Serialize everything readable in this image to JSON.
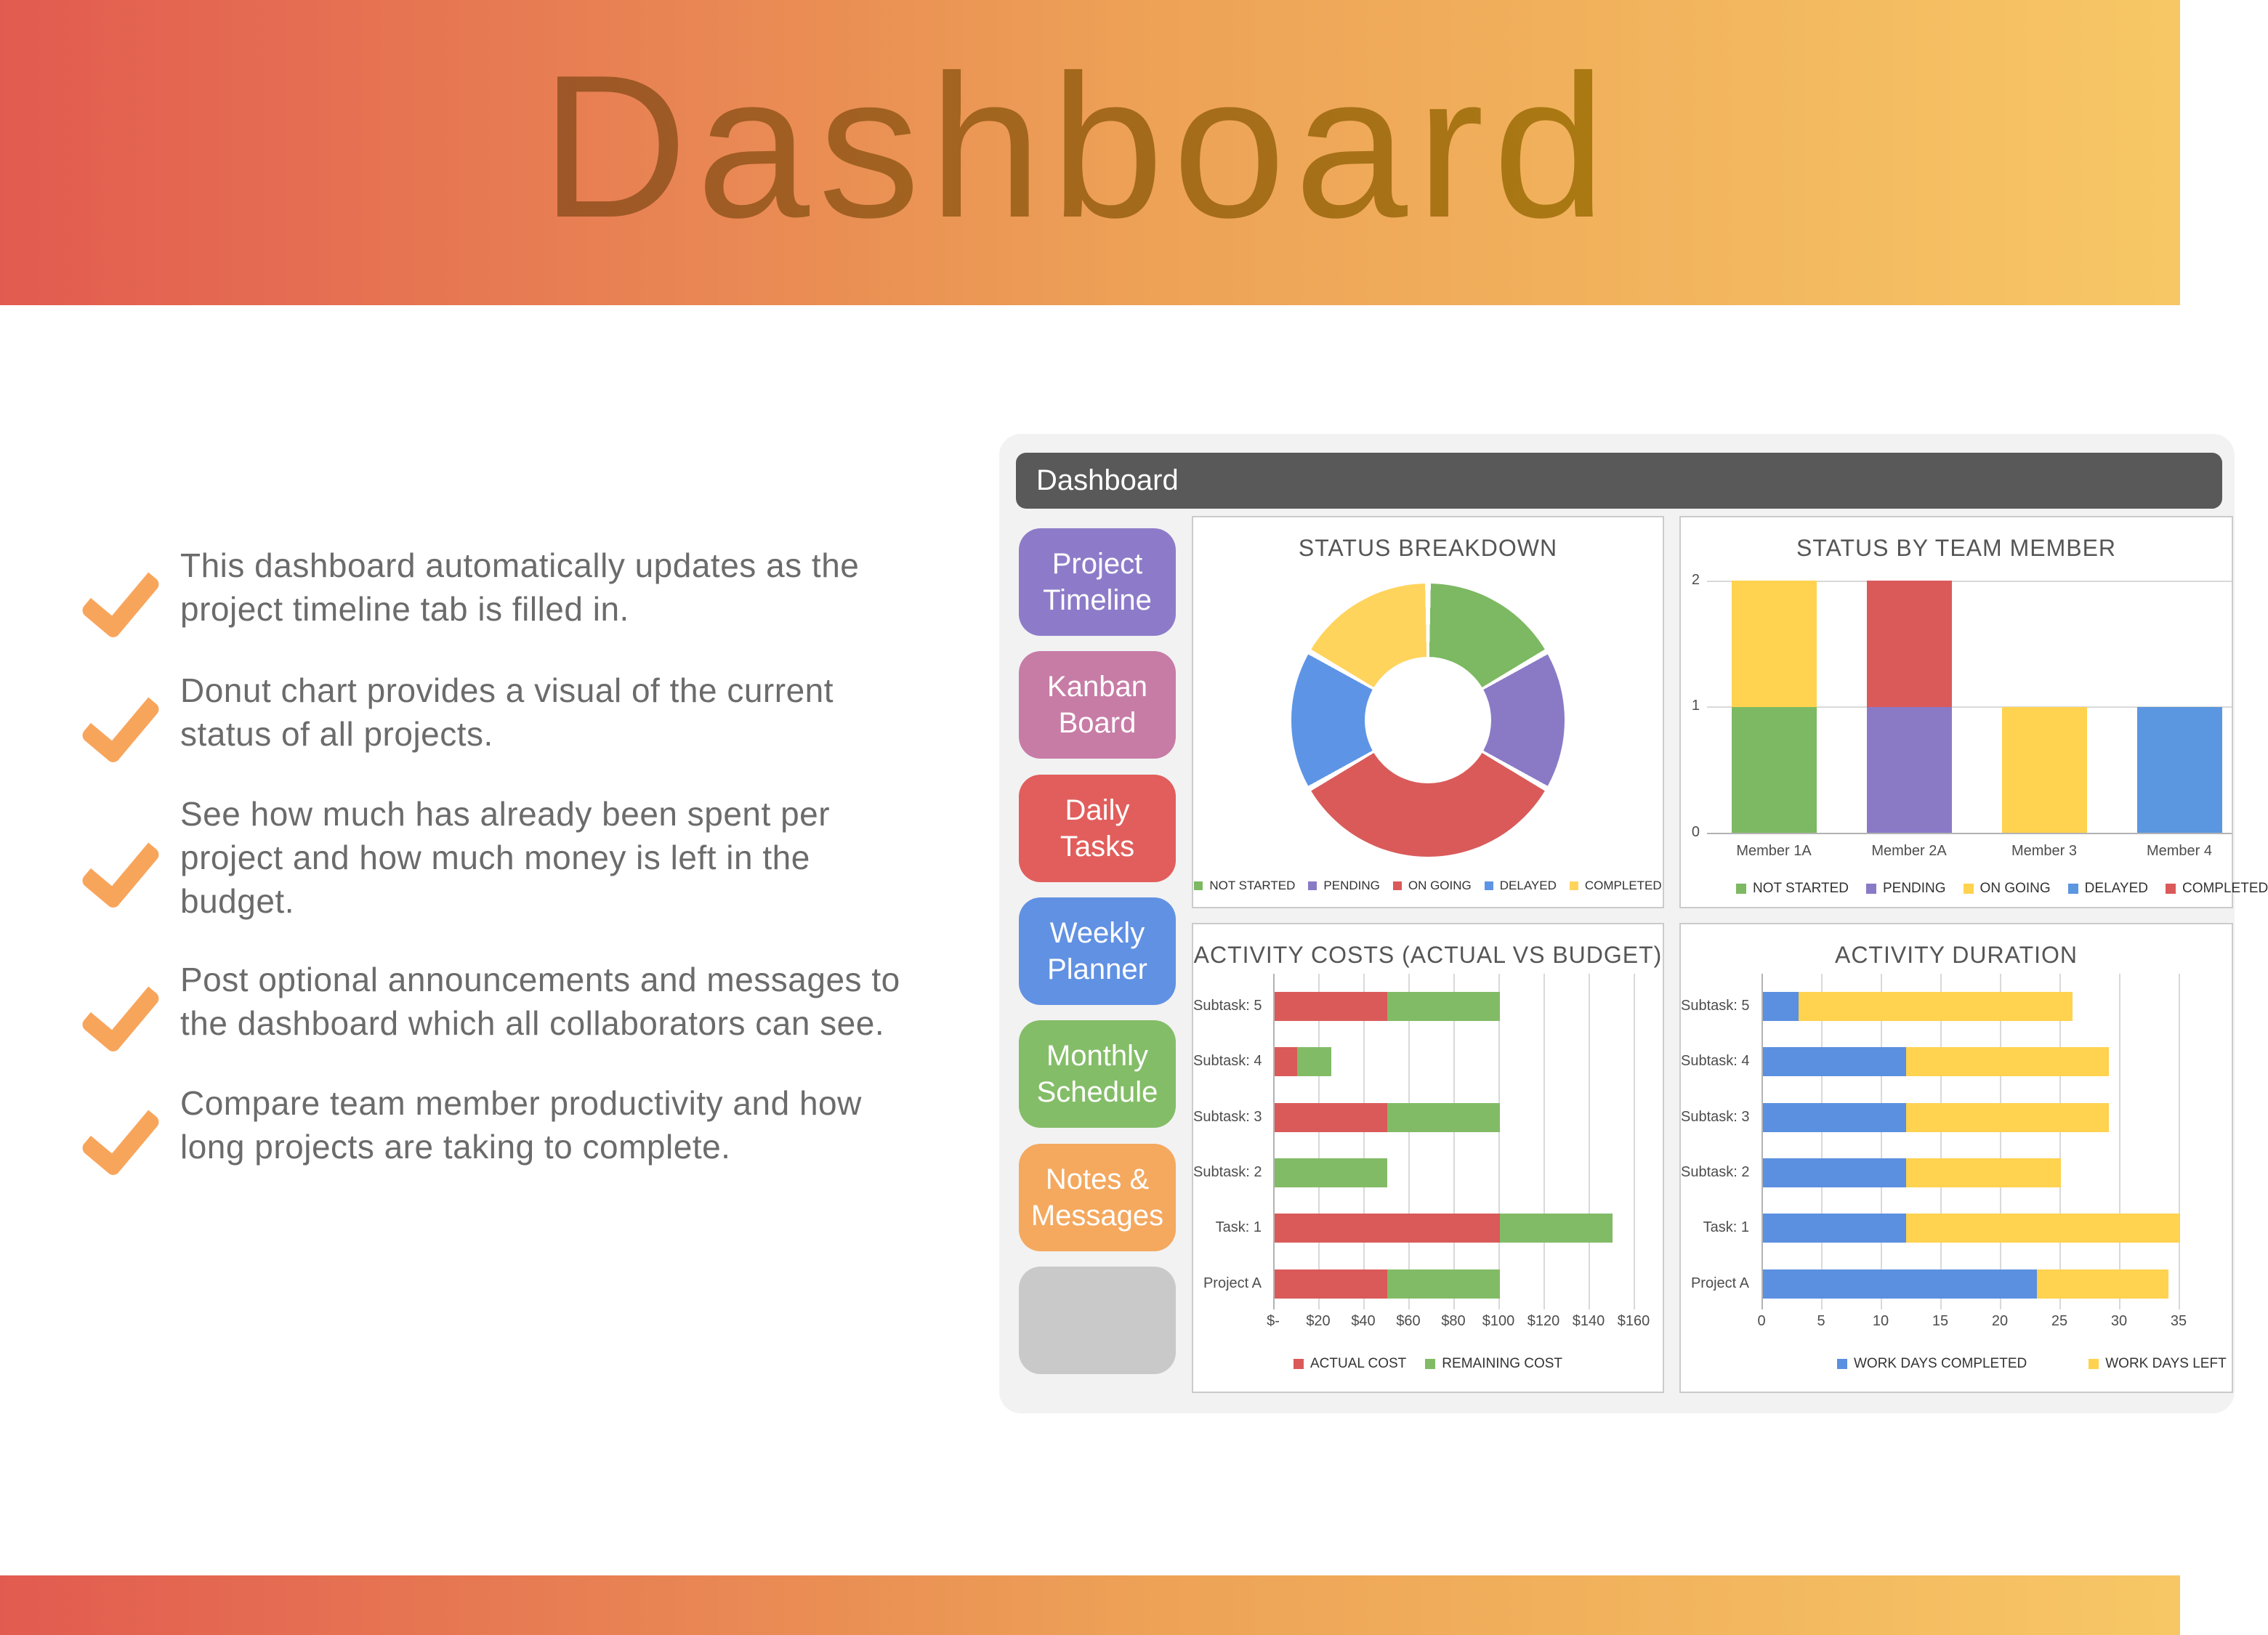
{
  "header": {
    "title": "Dashboard"
  },
  "bullets": [
    "This dashboard automatically updates as the\nproject timeline tab is filled in.",
    "Donut chart provides a visual of the current\nstatus of all projects.",
    "See how much has already been spent per\nproject and how much money is left in the\nbudget.",
    "Post optional announcements and messages to\nthe dashboard which all collaborators can see.",
    "Compare team member productivity and how\nlong projects are taking to complete."
  ],
  "accent_colors": {
    "banner_gradient_left": "#e25b50",
    "banner_gradient_right": "#f7c765",
    "check": "#f8a55c",
    "titlebar": "#595959",
    "window_background": "#f2f2f2"
  },
  "window": {
    "titlebar": "Dashboard",
    "sidebar_buttons": [
      {
        "label": "Project\nTimeline",
        "color": "#8d7bc9"
      },
      {
        "label": "Kanban\nBoard",
        "color": "#c77ca6"
      },
      {
        "label": "Daily\nTasks",
        "color": "#e15e5c"
      },
      {
        "label": "Weekly\nPlanner",
        "color": "#6191e3"
      },
      {
        "label": "Monthly\nSchedule",
        "color": "#84bd68"
      },
      {
        "label": "Notes &\nMessages",
        "color": "#f4a95f"
      },
      {
        "label": "",
        "color": "#c9c9c9"
      }
    ]
  },
  "chart_data": [
    {
      "id": "status_breakdown",
      "type": "pie",
      "subtype": "donut",
      "title": "STATUS BREAKDOWN",
      "labels": [
        "NOT STARTED",
        "PENDING",
        "ON GOING",
        "DELAYED",
        "COMPLETED"
      ],
      "values": [
        2,
        2,
        4,
        2,
        2
      ],
      "colors": [
        "#7cb962",
        "#8a7ac6",
        "#da5a5a",
        "#5e94e6",
        "#ffd45c"
      ],
      "legend_position": "bottom"
    },
    {
      "id": "status_by_team_member",
      "type": "bar",
      "stacked": true,
      "orientation": "vertical",
      "title": "STATUS BY TEAM MEMBER",
      "categories": [
        "Member 1A",
        "Member 2A",
        "Member 3",
        "Member 4"
      ],
      "series": [
        {
          "name": "NOT STARTED",
          "color": "#7cb962",
          "values": [
            1,
            0,
            0,
            0
          ]
        },
        {
          "name": "PENDING",
          "color": "#8a7ac6",
          "values": [
            0,
            1,
            0,
            0
          ]
        },
        {
          "name": "ON GOING",
          "color": "#ffd24f",
          "values": [
            1,
            0,
            1,
            0
          ]
        },
        {
          "name": "DELAYED",
          "color": "#5b96e0",
          "values": [
            0,
            0,
            0,
            1
          ]
        },
        {
          "name": "COMPLETED",
          "color": "#da5a5a",
          "values": [
            0,
            1,
            0,
            0
          ]
        }
      ],
      "yticks": [
        0,
        1,
        2
      ],
      "ylim": [
        0,
        2
      ],
      "grid": true,
      "legend_position": "bottom"
    },
    {
      "id": "activity_costs",
      "type": "bar",
      "stacked": true,
      "orientation": "horizontal",
      "title": "ACTIVITY COSTS (ACTUAL VS BUDGET)",
      "categories": [
        "Subtask: 5",
        "Subtask: 4",
        "Subtask: 3",
        "Subtask: 2",
        "Task: 1",
        "Project A"
      ],
      "series": [
        {
          "name": "ACTUAL COST",
          "color": "#da5a5a",
          "values": [
            50,
            10,
            50,
            0,
            100,
            50
          ]
        },
        {
          "name": "REMAINING COST",
          "color": "#82bb66",
          "values": [
            50,
            15,
            50,
            50,
            50,
            50
          ]
        }
      ],
      "xtick_labels": [
        "$-",
        "$20",
        "$40",
        "$60",
        "$80",
        "$100",
        "$120",
        "$140",
        "$160"
      ],
      "xlim": [
        0,
        160
      ],
      "grid": true,
      "legend_position": "bottom"
    },
    {
      "id": "activity_duration",
      "type": "bar",
      "stacked": true,
      "orientation": "horizontal",
      "title": "ACTIVITY DURATION",
      "categories": [
        "Subtask: 5",
        "Subtask: 4",
        "Subtask: 3",
        "Subtask: 2",
        "Task: 1",
        "Project A"
      ],
      "series": [
        {
          "name": "WORK DAYS COMPLETED",
          "color": "#5b8fe0",
          "values": [
            3,
            12,
            12,
            12,
            12,
            23
          ]
        },
        {
          "name": "WORK DAYS LEFT",
          "color": "#ffd24f",
          "values": [
            23,
            17,
            17,
            13,
            23,
            11
          ]
        }
      ],
      "xtick_labels": [
        "0",
        "5",
        "10",
        "15",
        "20",
        "25",
        "30",
        "35"
      ],
      "xlim": [
        0,
        35
      ],
      "grid": true,
      "legend_position": "bottom"
    }
  ]
}
